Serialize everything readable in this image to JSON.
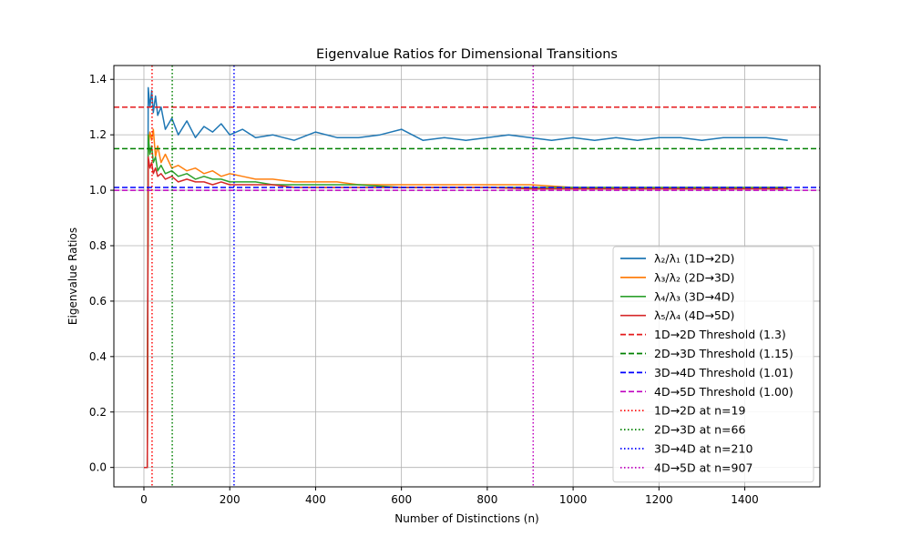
{
  "chart_data": {
    "type": "line",
    "title": "Eigenvalue Ratios for Dimensional Transitions",
    "xlabel": "Number of Distinctions (n)",
    "ylabel": "Eigenvalue Ratios",
    "xlim": [
      -70,
      1575
    ],
    "ylim": [
      -0.07,
      1.45
    ],
    "xticks": [
      0,
      200,
      400,
      600,
      800,
      1000,
      1200,
      1400
    ],
    "yticks": [
      0.0,
      0.2,
      0.4,
      0.6,
      0.8,
      1.0,
      1.2,
      1.4
    ],
    "grid": true,
    "legend_position": "lower-right",
    "series": [
      {
        "name": "λ₂/λ₁ (1D→2D)",
        "color": "#1f77b4",
        "x": [
          0,
          8,
          10,
          14,
          18,
          22,
          27,
          32,
          40,
          50,
          65,
          80,
          100,
          120,
          140,
          160,
          180,
          200,
          230,
          260,
          300,
          350,
          400,
          450,
          500,
          550,
          600,
          650,
          700,
          750,
          800,
          850,
          900,
          950,
          1000,
          1050,
          1100,
          1150,
          1200,
          1250,
          1300,
          1350,
          1400,
          1450,
          1500
        ],
        "y": [
          0.0,
          0.0,
          1.37,
          1.3,
          1.36,
          1.28,
          1.34,
          1.27,
          1.3,
          1.22,
          1.26,
          1.2,
          1.25,
          1.19,
          1.23,
          1.21,
          1.24,
          1.2,
          1.22,
          1.19,
          1.2,
          1.18,
          1.21,
          1.19,
          1.19,
          1.2,
          1.22,
          1.18,
          1.19,
          1.18,
          1.19,
          1.2,
          1.19,
          1.18,
          1.19,
          1.18,
          1.19,
          1.18,
          1.19,
          1.19,
          1.18,
          1.19,
          1.19,
          1.19,
          1.18
        ]
      },
      {
        "name": "λ₃/λ₂ (2D→3D)",
        "color": "#ff7f0e",
        "x": [
          0,
          8,
          10,
          14,
          18,
          22,
          27,
          32,
          40,
          50,
          65,
          80,
          100,
          120,
          140,
          160,
          180,
          200,
          230,
          260,
          300,
          350,
          400,
          450,
          500,
          600,
          700,
          800,
          900,
          1000,
          1100,
          1200,
          1300,
          1400,
          1500
        ],
        "y": [
          0.0,
          0.0,
          1.15,
          1.21,
          1.18,
          1.22,
          1.12,
          1.16,
          1.1,
          1.13,
          1.08,
          1.09,
          1.07,
          1.08,
          1.06,
          1.07,
          1.05,
          1.06,
          1.05,
          1.04,
          1.04,
          1.03,
          1.03,
          1.03,
          1.02,
          1.02,
          1.02,
          1.02,
          1.02,
          1.01,
          1.01,
          1.01,
          1.01,
          1.01,
          1.01
        ]
      },
      {
        "name": "λ₄/λ₃ (3D→4D)",
        "color": "#2ca02c",
        "x": [
          0,
          8,
          10,
          14,
          18,
          22,
          27,
          32,
          40,
          50,
          65,
          80,
          100,
          120,
          140,
          160,
          180,
          200,
          230,
          260,
          300,
          350,
          400,
          450,
          500,
          600,
          700,
          800,
          900,
          1000,
          1100,
          1200,
          1300,
          1400,
          1500
        ],
        "y": [
          0.0,
          0.0,
          1.2,
          1.13,
          1.16,
          1.1,
          1.12,
          1.07,
          1.09,
          1.06,
          1.07,
          1.05,
          1.06,
          1.04,
          1.05,
          1.04,
          1.04,
          1.03,
          1.03,
          1.03,
          1.02,
          1.02,
          1.02,
          1.02,
          1.02,
          1.01,
          1.01,
          1.01,
          1.01,
          1.01,
          1.01,
          1.01,
          1.01,
          1.01,
          1.01
        ]
      },
      {
        "name": "λ₅/λ₄ (4D→5D)",
        "color": "#d62728",
        "x": [
          0,
          8,
          10,
          14,
          18,
          22,
          27,
          32,
          40,
          50,
          65,
          80,
          100,
          120,
          140,
          160,
          180,
          200,
          230,
          260,
          300,
          350,
          400,
          450,
          500,
          600,
          700,
          800,
          900,
          1000,
          1100,
          1200,
          1300,
          1400,
          1500
        ],
        "y": [
          0.0,
          0.0,
          1.12,
          1.08,
          1.1,
          1.06,
          1.08,
          1.05,
          1.06,
          1.04,
          1.05,
          1.03,
          1.04,
          1.03,
          1.03,
          1.02,
          1.03,
          1.02,
          1.02,
          1.02,
          1.02,
          1.01,
          1.01,
          1.01,
          1.01,
          1.01,
          1.01,
          1.01,
          1.005,
          1.005,
          1.005,
          1.005,
          1.005,
          1.005,
          1.005
        ]
      }
    ],
    "thresholds": [
      {
        "name": "1D→2D Threshold (1.3)",
        "value": 1.3,
        "color": "#e41a1c"
      },
      {
        "name": "2D→3D Threshold (1.15)",
        "value": 1.15,
        "color": "#008000"
      },
      {
        "name": "3D→4D Threshold (1.01)",
        "value": 1.01,
        "color": "#0000ff"
      },
      {
        "name": "4D→5D Threshold (1.00)",
        "value": 1.0,
        "color": "#bf00bf"
      }
    ],
    "transitions": [
      {
        "name": "1D→2D at n=19",
        "value": 19,
        "color": "#ff0000"
      },
      {
        "name": "2D→3D at n=66",
        "value": 66,
        "color": "#008000"
      },
      {
        "name": "3D→4D at n=210",
        "value": 210,
        "color": "#0000ff"
      },
      {
        "name": "4D→5D at n=907",
        "value": 907,
        "color": "#bf00bf"
      }
    ]
  }
}
